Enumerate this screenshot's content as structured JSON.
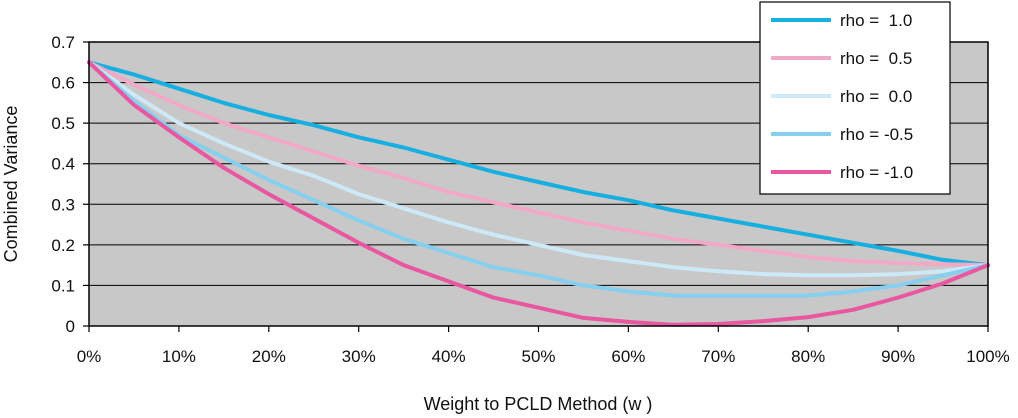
{
  "chart_data": {
    "type": "line",
    "title": "",
    "xlabel": "Weight to PCLD Method (w )",
    "ylabel": "Combined Variance",
    "x": [
      0,
      5,
      10,
      15,
      20,
      25,
      30,
      35,
      40,
      45,
      50,
      55,
      60,
      65,
      70,
      75,
      80,
      85,
      90,
      95,
      100
    ],
    "x_ticks": [
      0,
      10,
      20,
      30,
      40,
      50,
      60,
      70,
      80,
      90,
      100
    ],
    "x_tick_labels": [
      "0%",
      "10%",
      "20%",
      "30%",
      "40%",
      "50%",
      "60%",
      "70%",
      "80%",
      "90%",
      "100%"
    ],
    "xlim": [
      0,
      100
    ],
    "y_ticks": [
      0,
      0.1,
      0.2,
      0.3,
      0.4,
      0.5,
      0.6,
      0.7
    ],
    "y_tick_labels": [
      "0",
      "0.1",
      "0.2",
      "0.3",
      "0.4",
      "0.5",
      "0.6",
      "0.7"
    ],
    "ylim": [
      0,
      0.7
    ],
    "grid": "horizontal",
    "plot_background": "#c8c8c8",
    "legend_position": "top-right",
    "series": [
      {
        "name": "rho =  1.0",
        "color": "#17aee0",
        "values": [
          0.65,
          0.62,
          0.585,
          0.55,
          0.52,
          0.495,
          0.465,
          0.44,
          0.41,
          0.38,
          0.355,
          0.33,
          0.31,
          0.285,
          0.265,
          0.245,
          0.225,
          0.205,
          0.185,
          0.163,
          0.15
        ]
      },
      {
        "name": "rho =  0.5",
        "color": "#f2a9c7",
        "values": [
          0.65,
          0.595,
          0.545,
          0.5,
          0.465,
          0.43,
          0.395,
          0.365,
          0.33,
          0.305,
          0.28,
          0.255,
          0.235,
          0.215,
          0.2,
          0.185,
          0.17,
          0.16,
          0.155,
          0.152,
          0.15
        ]
      },
      {
        "name": "rho =  0.0",
        "color": "#cde9f7",
        "values": [
          0.65,
          0.57,
          0.5,
          0.45,
          0.405,
          0.37,
          0.325,
          0.29,
          0.255,
          0.225,
          0.2,
          0.175,
          0.16,
          0.145,
          0.135,
          0.128,
          0.125,
          0.125,
          0.128,
          0.135,
          0.15
        ]
      },
      {
        "name": "rho = -0.5",
        "color": "#86cfef",
        "values": [
          0.65,
          0.555,
          0.47,
          0.415,
          0.36,
          0.31,
          0.26,
          0.215,
          0.18,
          0.145,
          0.125,
          0.1,
          0.085,
          0.075,
          0.075,
          0.075,
          0.075,
          0.085,
          0.1,
          0.125,
          0.15
        ]
      },
      {
        "name": "rho = -1.0",
        "color": "#e8579f",
        "values": [
          0.65,
          0.545,
          0.465,
          0.39,
          0.325,
          0.265,
          0.205,
          0.15,
          0.11,
          0.07,
          0.045,
          0.02,
          0.01,
          0.003,
          0.005,
          0.012,
          0.022,
          0.04,
          0.07,
          0.105,
          0.15
        ]
      }
    ]
  }
}
